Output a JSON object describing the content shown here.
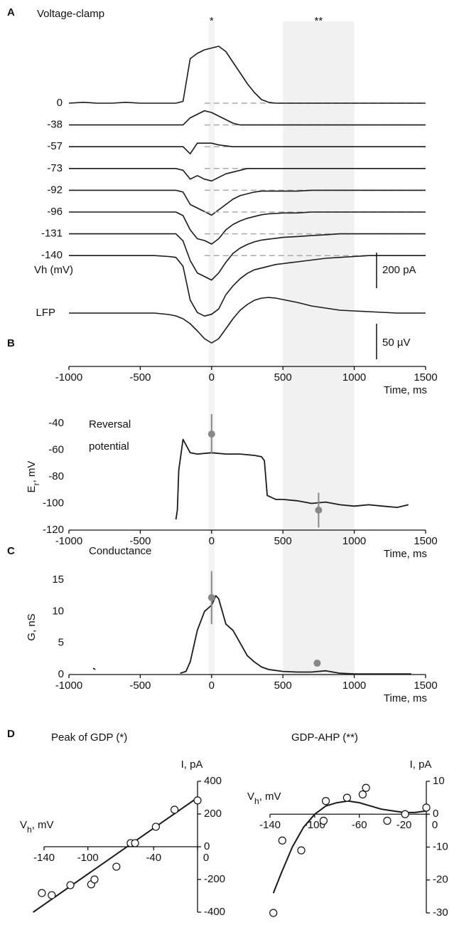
{
  "chart_data": [
    {
      "type": "traces",
      "panel_label": "A",
      "title": "Voltage-clamp",
      "series_label": "Vh (mV)",
      "x": [
        -1000,
        -900,
        -800,
        -700,
        -600,
        -500,
        -400,
        -300,
        -250,
        -200,
        -150,
        -100,
        -50,
        0,
        50,
        100,
        150,
        200,
        250,
        300,
        350,
        400,
        450,
        500,
        550,
        600,
        700,
        800,
        900,
        1000,
        1100,
        1200,
        1300,
        1400,
        1500
      ],
      "series": [
        {
          "name": "0",
          "color": "#1a1a1a",
          "values": [
            0,
            5,
            0,
            0,
            5,
            0,
            0,
            0,
            0,
            10,
            250,
            280,
            300,
            310,
            320,
            290,
            230,
            170,
            110,
            60,
            20,
            5,
            0,
            0,
            0,
            0,
            0,
            0,
            0,
            0,
            0,
            0,
            0,
            0,
            0
          ]
        },
        {
          "name": "-38",
          "color": "#1a1a1a",
          "values": [
            0,
            0,
            0,
            0,
            0,
            0,
            0,
            0,
            0,
            0,
            40,
            60,
            80,
            70,
            50,
            30,
            10,
            0,
            0,
            0,
            0,
            0,
            0,
            0,
            0,
            0,
            0,
            0,
            0,
            0,
            0,
            0,
            0,
            0,
            0
          ]
        },
        {
          "name": "-57",
          "color": "#1a1a1a",
          "values": [
            0,
            0,
            0,
            0,
            0,
            0,
            0,
            0,
            0,
            0,
            -40,
            20,
            20,
            20,
            10,
            5,
            0,
            0,
            0,
            0,
            0,
            0,
            0,
            0,
            0,
            0,
            0,
            0,
            0,
            0,
            0,
            0,
            0,
            0,
            0
          ]
        },
        {
          "name": "-73",
          "color": "#1a1a1a",
          "values": [
            0,
            0,
            0,
            0,
            0,
            0,
            0,
            0,
            0,
            -10,
            -60,
            -40,
            -60,
            -70,
            -50,
            -30,
            -20,
            -10,
            0,
            0,
            0,
            0,
            0,
            0,
            0,
            0,
            0,
            0,
            0,
            0,
            0,
            0,
            0,
            0,
            0
          ]
        },
        {
          "name": "-92",
          "color": "#1a1a1a",
          "values": [
            0,
            0,
            0,
            0,
            0,
            0,
            0,
            0,
            0,
            -10,
            -80,
            -100,
            -120,
            -140,
            -110,
            -80,
            -50,
            -30,
            -20,
            -10,
            -5,
            -5,
            -5,
            -5,
            -5,
            -5,
            0,
            0,
            0,
            0,
            0,
            0,
            0,
            0,
            0
          ]
        },
        {
          "name": "-96",
          "color": "#1a1a1a",
          "values": [
            0,
            0,
            0,
            0,
            0,
            0,
            0,
            0,
            0,
            -20,
            -100,
            -150,
            -160,
            -180,
            -150,
            -100,
            -70,
            -50,
            -35,
            -25,
            -15,
            -10,
            -8,
            -5,
            -5,
            -5,
            0,
            0,
            0,
            0,
            0,
            0,
            0,
            0,
            0
          ]
        },
        {
          "name": "-131",
          "color": "#1a1a1a",
          "values": [
            0,
            0,
            0,
            0,
            0,
            0,
            0,
            0,
            0,
            -40,
            -150,
            -220,
            -240,
            -260,
            -220,
            -160,
            -110,
            -80,
            -60,
            -45,
            -35,
            -30,
            -25,
            -20,
            -18,
            -15,
            -10,
            -5,
            0,
            0,
            0,
            0,
            0,
            0,
            0
          ]
        },
        {
          "name": "-140",
          "color": "#1a1a1a",
          "values": [
            0,
            0,
            0,
            0,
            0,
            0,
            0,
            -5,
            -10,
            -60,
            -250,
            -320,
            -340,
            -330,
            -300,
            -220,
            -170,
            -130,
            -100,
            -80,
            -70,
            -60,
            -50,
            -45,
            -40,
            -35,
            -25,
            -15,
            -10,
            -5,
            0,
            0,
            0,
            0,
            0
          ]
        },
        {
          "name": "LFP",
          "color": "#1a1a1a",
          "values": [
            0,
            0,
            0,
            0,
            0,
            0,
            0,
            -2,
            -4,
            -8,
            -15,
            -25,
            -36,
            -42,
            -36,
            -22,
            -8,
            4,
            12,
            18,
            21,
            22,
            21,
            19,
            17,
            15,
            10,
            7,
            4,
            3,
            2,
            1,
            0,
            0,
            0
          ]
        }
      ],
      "scale_bars": [
        {
          "value": 200,
          "label": "200 pA"
        },
        {
          "value": 50,
          "label": "50 µV"
        }
      ],
      "windows": [
        {
          "label": "*",
          "range": [
            -20,
            20
          ],
          "color": "#f3f3f3"
        },
        {
          "label": "**",
          "range": [
            500,
            1000
          ],
          "color": "#f1f1f1"
        }
      ],
      "xlim": [
        -1000,
        1500
      ],
      "xticks": [
        -1000,
        -500,
        0,
        500,
        1000,
        1500
      ],
      "xlabel": "Time, ms"
    },
    {
      "type": "line",
      "panel_label": "B",
      "title": [
        "Reversal",
        "potential"
      ],
      "ylabel": [
        "E",
        "r",
        ", mV"
      ],
      "series": [
        {
          "color": "#1a1a1a",
          "x": [
            -250,
            -240,
            -230,
            -200,
            -150,
            -100,
            0,
            100,
            200,
            300,
            350,
            370,
            390,
            450,
            500,
            600,
            700,
            800,
            900,
            1000,
            1100,
            1200,
            1300,
            1380
          ],
          "values": [
            -112,
            -105,
            -75,
            -52,
            -62,
            -63,
            -62,
            -63,
            -63,
            -64,
            -65,
            -68,
            -94,
            -97,
            -97,
            -98,
            -100,
            -99,
            -101,
            -102,
            -101,
            -102,
            -103,
            -101
          ]
        }
      ],
      "points": {
        "color": "#888888",
        "x": [
          0,
          750
        ],
        "values": [
          -48,
          -105
        ],
        "errors": [
          15,
          13
        ]
      },
      "xlim": [
        -1000,
        1500
      ],
      "xticks": [
        -1000,
        -500,
        0,
        500,
        1000,
        1500
      ],
      "xlabel": "Time, ms",
      "ylim": [
        -120,
        -40
      ],
      "yticks": [
        -40,
        -60,
        -80,
        -100,
        -120
      ]
    },
    {
      "type": "line",
      "panel_label": "C",
      "title": "Conductance",
      "ylabel": "G, nS",
      "series": [
        {
          "color": "#1a1a1a",
          "x": [
            -830,
            -815,
            -800,
            -220,
            -180,
            -150,
            -100,
            -50,
            0,
            30,
            50,
            100,
            150,
            200,
            250,
            300,
            350,
            400,
            500,
            600,
            700,
            800,
            900,
            1000,
            1400
          ],
          "values": [
            1,
            0.8,
            null,
            0.2,
            0.5,
            2,
            7,
            10,
            11,
            12.5,
            12,
            8,
            7,
            5,
            3,
            2,
            1.2,
            0.8,
            0.5,
            0.4,
            0.4,
            0.6,
            0.2,
            0.1,
            0.1
          ]
        }
      ],
      "points": {
        "color": "#888888",
        "x": [
          0,
          740
        ],
        "values": [
          12.2,
          1.8
        ],
        "errors": [
          4.2,
          null
        ]
      },
      "xlim": [
        -1000,
        1500
      ],
      "xticks": [
        -1000,
        -500,
        0,
        500,
        1000,
        1500
      ],
      "xlabel": "Time, ms",
      "ylim": [
        0,
        15
      ],
      "yticks": [
        0,
        5,
        10,
        15
      ]
    },
    {
      "type": "iv",
      "panel_label": "D",
      "title": "Peak of GDP (*)",
      "xlabel": [
        "V",
        "h",
        ", mV"
      ],
      "ylabel": "I, pA",
      "points": {
        "x": [
          -142,
          -133,
          -116,
          -97,
          -94,
          -74,
          -61,
          -57,
          -38,
          -21,
          0
        ],
        "values": [
          -283,
          -296,
          -235,
          -230,
          -200,
          -122,
          22,
          22,
          122,
          226,
          283
        ]
      },
      "fit": {
        "color": "#1a1a1a",
        "x": [
          -150,
          0
        ],
        "values": [
          -400,
          300
        ]
      },
      "xlim": [
        -140,
        0
      ],
      "xticks": [
        -140,
        -100,
        -40,
        0
      ],
      "ylim": [
        -400,
        400
      ],
      "yticks": [
        -400,
        -200,
        0,
        200,
        400
      ]
    },
    {
      "type": "iv",
      "title": "GDP-AHP  (**)",
      "xlabel": [
        "V",
        "h",
        ", mV"
      ],
      "ylabel": "I, pA",
      "points": {
        "x": [
          -137,
          -129,
          -112,
          -92,
          -90,
          -71,
          -57,
          -54,
          -35,
          -19,
          0
        ],
        "values": [
          -30,
          -8,
          -11,
          -2,
          4,
          5,
          6,
          8,
          -2,
          0,
          2
        ]
      },
      "fit": {
        "color": "#1a1a1a",
        "x": [
          -137,
          -130,
          -120,
          -110,
          -100,
          -90,
          -80,
          -70,
          -60,
          -50,
          -40,
          -30,
          -20,
          -10,
          0
        ],
        "values": [
          -24,
          -18,
          -10,
          -4,
          0,
          2.5,
          3.5,
          4,
          3.5,
          2.5,
          1.5,
          1,
          0.5,
          0.5,
          1
        ]
      },
      "xlim": [
        -140,
        0
      ],
      "xticks": [
        -140,
        -100,
        -60,
        -20,
        0
      ],
      "ylim": [
        -30,
        10
      ],
      "yticks": [
        -30,
        -20,
        -10,
        0,
        10
      ]
    }
  ]
}
